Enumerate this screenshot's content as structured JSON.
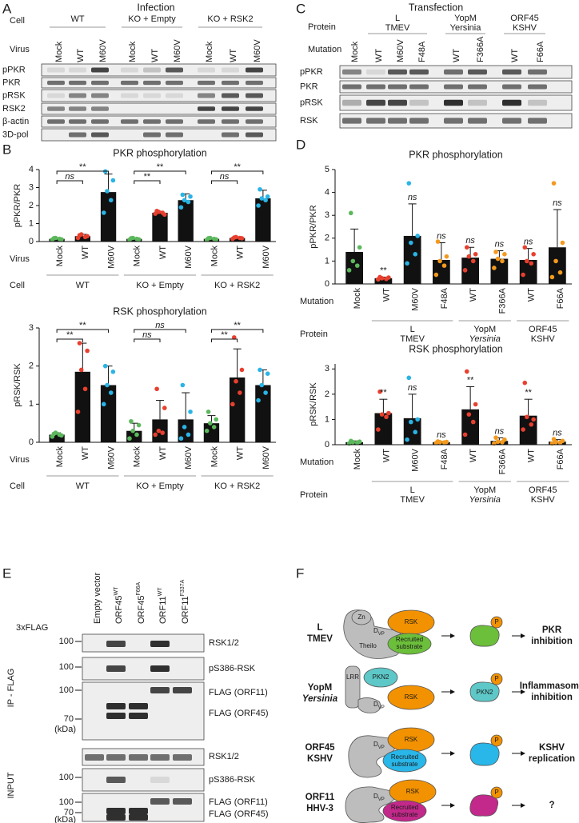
{
  "panels": {
    "A": {
      "letter": "A",
      "title": "Infection",
      "cell_label": "Cell",
      "cell_groups": [
        "WT",
        "KO + Empty",
        "KO + RSK2"
      ],
      "virus_label": "Virus",
      "lanes": [
        "Mock",
        "WT",
        "M60V",
        "Mock",
        "WT",
        "M60V",
        "Mock",
        "WT",
        "M60V"
      ],
      "rows": [
        "pPKR",
        "PKR",
        "pRSK",
        "RSK2",
        "β-actin",
        "3D-pol"
      ]
    },
    "B": {
      "letter": "B"
    },
    "C": {
      "letter": "C",
      "title": "Transfection",
      "protein_label": "Protein",
      "protein_groups": [
        [
          "L",
          "TMEV"
        ],
        [
          "YopM",
          "Yersinia"
        ],
        [
          "ORF45",
          "KSHV"
        ]
      ],
      "mutation_label": "Mutation",
      "lanes": [
        "Mock",
        "WT",
        "M60V",
        "F48A",
        "WT",
        "F366A",
        "WT",
        "F66A"
      ],
      "rows": [
        "pPKR",
        "PKR",
        "pRSK",
        "RSK"
      ]
    },
    "D": {
      "letter": "D"
    },
    "E": {
      "letter": "E",
      "tag_label": "3xFLAG",
      "lanes": [
        {
          "name": "Empty vector"
        },
        {
          "name": "ORF45",
          "sup": "WT"
        },
        {
          "name": "ORF45",
          "sup": "F66A"
        },
        {
          "name": "ORF11",
          "sup": "WT"
        },
        {
          "name": "ORF11",
          "sup": "F337A"
        }
      ],
      "sections": [
        {
          "label": "IP - FLAG",
          "rows": [
            "RSK1/2",
            "pS386-RSK",
            "FLAG (ORF11)",
            "FLAG (ORF45)"
          ],
          "markers": [
            100,
            100,
            100,
            70
          ],
          "unit": "(kDa)"
        },
        {
          "label": "INPUT",
          "rows": [
            "RSK1/2",
            "pS386-RSK",
            "FLAG (ORF11)",
            "FLAG (ORF45)"
          ],
          "markers": [
            100,
            100,
            70
          ],
          "unit": "(kDa)"
        }
      ]
    },
    "F": {
      "letter": "F",
      "rows": [
        {
          "name": [
            "L",
            "TMEV"
          ],
          "labels": [
            "Zn",
            "RSK",
            "Theilo",
            "Recruited",
            "substrate"
          ],
          "motif": [
            "D",
            "VP"
          ],
          "phospho": "P",
          "outcome": [
            "PKR",
            "inhibition"
          ]
        },
        {
          "name": [
            "YopM",
            "Yersinia"
          ],
          "labels": [
            "LRR",
            "PKN2",
            "RSK"
          ],
          "motif": [
            "D",
            "VP"
          ],
          "phospho": "P",
          "product": "PKN2",
          "outcome": [
            "Inflammasome",
            "inhibition"
          ]
        },
        {
          "name": [
            "ORF45",
            "KSHV"
          ],
          "labels": [
            "RSK",
            "Recruited",
            "substrate"
          ],
          "motif": [
            "D",
            "VP"
          ],
          "phospho": "P",
          "outcome": [
            "KSHV",
            "replication"
          ]
        },
        {
          "name": [
            "ORF11",
            "HHV-3"
          ],
          "labels": [
            "RSK",
            "Recruited",
            "substrate"
          ],
          "motif": [
            "D",
            "VP"
          ],
          "phospho": "P",
          "outcome": [
            "?"
          ]
        }
      ]
    }
  },
  "chart_data": [
    {
      "type": "bar",
      "title": "PKR phosphorylation",
      "y_label": "pPKR/PKR",
      "ylim": [
        0,
        4
      ],
      "yticks": [
        0,
        1,
        2,
        3,
        4
      ],
      "category_label": "Virus",
      "categories": [
        "Mock",
        "WT",
        "M60V",
        "Mock",
        "WT",
        "M60V",
        "Mock",
        "WT",
        "M60V"
      ],
      "values": [
        0.15,
        0.3,
        2.75,
        0.15,
        1.6,
        2.3,
        0.15,
        0.2,
        2.4
      ],
      "errors": [
        0.05,
        0.1,
        1.0,
        0.05,
        0.08,
        0.35,
        0.05,
        0.06,
        0.45
      ],
      "points": [
        [
          0.1,
          0.15,
          0.2,
          0.12,
          0.18
        ],
        [
          0.2,
          0.25,
          0.4,
          0.3,
          0.35
        ],
        [
          1.6,
          2.3,
          2.8,
          3.4,
          3.9
        ],
        [
          0.1,
          0.15,
          0.2,
          0.12,
          0.18
        ],
        [
          1.55,
          1.6,
          1.65,
          1.5,
          1.7
        ],
        [
          1.9,
          2.2,
          2.3,
          2.5,
          2.6
        ],
        [
          0.1,
          0.15,
          0.2,
          0.12,
          0.18
        ],
        [
          0.15,
          0.2,
          0.25,
          0.18,
          0.22
        ],
        [
          2.0,
          2.3,
          2.4,
          2.5,
          2.9
        ]
      ],
      "colors": [
        "#5cb85c",
        "#e8402f",
        "#2ab4e6",
        "#5cb85c",
        "#e8402f",
        "#2ab4e6",
        "#5cb85c",
        "#e8402f",
        "#2ab4e6"
      ],
      "group_label": "Cell",
      "groups": [
        {
          "label": "WT",
          "start": 0,
          "end": 2
        },
        {
          "label": "KO + Empty",
          "start": 3,
          "end": 5
        },
        {
          "label": "KO + RSK2",
          "start": 6,
          "end": 8
        }
      ],
      "significance": [
        {
          "from": 0,
          "to": 1,
          "label": "ns"
        },
        {
          "from": 0,
          "to": 2,
          "label": "**"
        },
        {
          "from": 3,
          "to": 4,
          "label": "**"
        },
        {
          "from": 3,
          "to": 5,
          "label": "**"
        },
        {
          "from": 6,
          "to": 7,
          "label": "ns"
        },
        {
          "from": 6,
          "to": 8,
          "label": "**"
        }
      ]
    },
    {
      "type": "bar",
      "title": "RSK phosphorylation",
      "y_label": "pRSK/RSK",
      "ylim": [
        0,
        3
      ],
      "yticks": [
        0,
        1,
        2,
        3
      ],
      "category_label": "Virus",
      "categories": [
        "Mock",
        "WT",
        "M60V",
        "Mock",
        "WT",
        "M60V",
        "Mock",
        "WT",
        "M60V"
      ],
      "values": [
        0.2,
        1.85,
        1.5,
        0.3,
        0.6,
        0.6,
        0.5,
        1.7,
        1.5
      ],
      "errors": [
        0.05,
        0.75,
        0.5,
        0.2,
        0.5,
        0.7,
        0.2,
        0.75,
        0.4
      ],
      "points": [
        [
          0.15,
          0.2,
          0.25,
          0.18,
          0.22
        ],
        [
          0.8,
          1.4,
          1.9,
          2.4,
          2.6
        ],
        [
          1.0,
          1.3,
          1.5,
          1.85,
          2.0
        ],
        [
          0.1,
          0.2,
          0.3,
          0.45,
          0.55
        ],
        [
          0.2,
          0.25,
          0.3,
          0.9,
          1.4
        ],
        [
          0.1,
          0.2,
          0.4,
          0.8,
          1.5
        ],
        [
          0.3,
          0.4,
          0.5,
          0.6,
          0.8
        ],
        [
          1.0,
          1.3,
          1.6,
          1.9,
          2.75
        ],
        [
          1.1,
          1.3,
          1.5,
          1.8,
          1.9
        ]
      ],
      "colors": [
        "#5cb85c",
        "#e8402f",
        "#2ab4e6",
        "#5cb85c",
        "#e8402f",
        "#2ab4e6",
        "#5cb85c",
        "#e8402f",
        "#2ab4e6"
      ],
      "group_label": "Cell",
      "groups": [
        {
          "label": "WT",
          "start": 0,
          "end": 2
        },
        {
          "label": "KO + Empty",
          "start": 3,
          "end": 5
        },
        {
          "label": "KO + RSK2",
          "start": 6,
          "end": 8
        }
      ],
      "significance": [
        {
          "from": 0,
          "to": 1,
          "label": "**"
        },
        {
          "from": 0,
          "to": 2,
          "label": "**"
        },
        {
          "from": 3,
          "to": 4,
          "label": "ns"
        },
        {
          "from": 3,
          "to": 5,
          "label": "ns"
        },
        {
          "from": 6,
          "to": 7,
          "label": "**"
        },
        {
          "from": 6,
          "to": 8,
          "label": "**"
        }
      ]
    },
    {
      "type": "bar",
      "title": "PKR phosphorylation",
      "y_label": "pPKR/PKR",
      "ylim": [
        0,
        5
      ],
      "yticks": [
        0,
        1,
        2,
        3,
        4,
        5
      ],
      "category_label": "Mutation",
      "categories": [
        "Mock",
        "WT",
        "M60V",
        "F48A",
        "WT",
        "F366A",
        "WT",
        "F66A"
      ],
      "values": [
        1.4,
        0.25,
        2.1,
        1.05,
        1.15,
        1.1,
        1.05,
        1.6
      ],
      "errors": [
        1.0,
        0.05,
        1.4,
        0.75,
        0.45,
        0.35,
        0.5,
        1.65
      ],
      "points": [
        [
          0.6,
          0.8,
          1.0,
          1.6,
          3.1
        ],
        [
          0.2,
          0.22,
          0.25,
          0.28,
          0.3
        ],
        [
          0.9,
          1.3,
          1.8,
          2.1,
          4.4
        ],
        [
          0.4,
          0.8,
          1.0,
          1.2,
          1.85
        ],
        [
          0.6,
          1.0,
          1.2,
          1.3,
          1.6
        ],
        [
          0.7,
          1.0,
          1.1,
          1.3,
          1.4
        ],
        [
          0.4,
          0.9,
          1.0,
          1.3,
          1.6
        ],
        [
          0.3,
          0.5,
          1.0,
          1.8,
          4.4
        ]
      ],
      "colors": [
        "#5cb85c",
        "#e8402f",
        "#2ab4e6",
        "#f39a1e",
        "#e8402f",
        "#f39a1e",
        "#e8402f",
        "#f39a1e"
      ],
      "group_label": "Protein",
      "groups": [
        {
          "label": [
            "L",
            "TMEV"
          ],
          "start": 1,
          "end": 3
        },
        {
          "label": [
            "YopM",
            "Yersinia"
          ],
          "start": 4,
          "end": 5
        },
        {
          "label": [
            "ORF45",
            "KSHV"
          ],
          "start": 6,
          "end": 7
        }
      ],
      "annotations": [
        null,
        "**",
        "ns",
        "ns",
        "ns",
        "ns",
        "ns",
        "ns"
      ]
    },
    {
      "type": "bar",
      "title": "RSK phosphorylation",
      "y_label": "pRSK/RSK",
      "ylim": [
        0,
        3.2
      ],
      "yticks": [
        0,
        1,
        2,
        3
      ],
      "category_label": "Mutation",
      "categories": [
        "Mock",
        "WT",
        "M60V",
        "F48A",
        "WT",
        "F366A",
        "WT",
        "F66A"
      ],
      "values": [
        0.1,
        1.25,
        1.05,
        0.1,
        1.4,
        0.15,
        1.15,
        0.12
      ],
      "errors": [
        0.05,
        0.55,
        0.95,
        0.03,
        0.9,
        0.12,
        0.65,
        0.08
      ],
      "points": [
        [
          0.05,
          0.08,
          0.1,
          0.12,
          0.15
        ],
        [
          0.6,
          1.1,
          1.2,
          1.25,
          2.1
        ],
        [
          0.2,
          0.5,
          0.9,
          1.0,
          2.65
        ],
        [
          0.07,
          0.09,
          0.1,
          0.11,
          0.13
        ],
        [
          0.4,
          0.9,
          1.2,
          1.6,
          2.9
        ],
        [
          0.05,
          0.1,
          0.12,
          0.2,
          0.28
        ],
        [
          0.6,
          0.8,
          1.1,
          1.0,
          2.45
        ],
        [
          0.05,
          0.08,
          0.1,
          0.15,
          0.22
        ]
      ],
      "colors": [
        "#5cb85c",
        "#e8402f",
        "#2ab4e6",
        "#f39a1e",
        "#e8402f",
        "#f39a1e",
        "#e8402f",
        "#f39a1e"
      ],
      "group_label": "Protein",
      "groups": [
        {
          "label": [
            "L",
            "TMEV"
          ],
          "start": 1,
          "end": 3
        },
        {
          "label": [
            "YopM",
            "Yersinia"
          ],
          "start": 4,
          "end": 5
        },
        {
          "label": [
            "ORF45",
            "KSHV"
          ],
          "start": 6,
          "end": 7
        }
      ],
      "annotations": [
        null,
        "**",
        "ns",
        "ns",
        "**",
        "ns",
        "**",
        "ns"
      ]
    }
  ]
}
